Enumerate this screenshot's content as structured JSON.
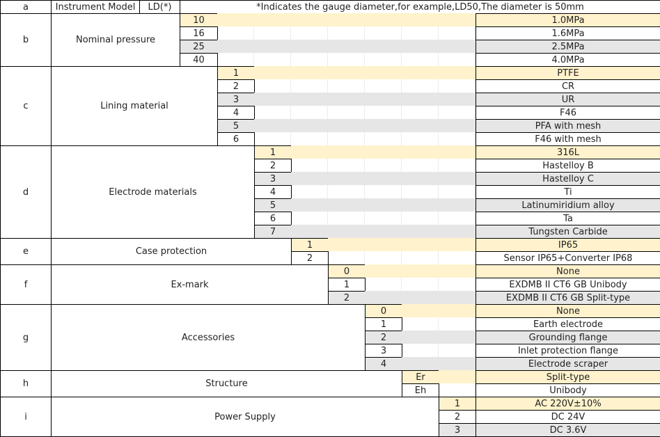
{
  "header": {
    "code": "a",
    "model_label": "Instrument Model",
    "model_value": "LD(*)",
    "note": "*Indicates the gauge diameter,for example,LD50,The diameter is 50mm"
  },
  "groups": [
    {
      "code": "b",
      "label": "Nominal pressure",
      "rows": [
        {
          "code": "10",
          "desc": "1.0MPa"
        },
        {
          "code": "16",
          "desc": "1.6MPa"
        },
        {
          "code": "25",
          "desc": "2.5MPa"
        },
        {
          "code": "40",
          "desc": "4.0MPa"
        }
      ]
    },
    {
      "code": "c",
      "label": "Lining material",
      "rows": [
        {
          "code": "1",
          "desc": "PTFE"
        },
        {
          "code": "2",
          "desc": "CR"
        },
        {
          "code": "3",
          "desc": "UR"
        },
        {
          "code": "4",
          "desc": "F46"
        },
        {
          "code": "5",
          "desc": "PFA with mesh"
        },
        {
          "code": "6",
          "desc": "F46 with mesh"
        }
      ]
    },
    {
      "code": "d",
      "label": "Electrode materials",
      "rows": [
        {
          "code": "1",
          "desc": "316L"
        },
        {
          "code": "2",
          "desc": "Hastelloy B"
        },
        {
          "code": "3",
          "desc": "Hastelloy C"
        },
        {
          "code": "4",
          "desc": "Ti"
        },
        {
          "code": "5",
          "desc": "Latinumiridium alloy"
        },
        {
          "code": "6",
          "desc": "Ta"
        },
        {
          "code": "7",
          "desc": "Tungsten Carbide"
        }
      ]
    },
    {
      "code": "e",
      "label": "Case protection",
      "rows": [
        {
          "code": "1",
          "desc": "IP65"
        },
        {
          "code": "2",
          "desc": "Sensor IP65+Converter IP68"
        }
      ]
    },
    {
      "code": "f",
      "label": "Ex-mark",
      "rows": [
        {
          "code": "0",
          "desc": "None"
        },
        {
          "code": "1",
          "desc": "EXDMB II CT6 GB  Unibody"
        },
        {
          "code": "2",
          "desc": "EXDMB II CT6 GB  Split-type"
        }
      ]
    },
    {
      "code": "g",
      "label": "Accessories",
      "rows": [
        {
          "code": "0",
          "desc": "None"
        },
        {
          "code": "1",
          "desc": "Earth electrode"
        },
        {
          "code": "2",
          "desc": "Grounding flange"
        },
        {
          "code": "3",
          "desc": "Inlet protection flange"
        },
        {
          "code": "4",
          "desc": "Electrode scraper"
        }
      ]
    },
    {
      "code": "h",
      "label": "Structure",
      "rows": [
        {
          "code": "Er",
          "desc": "Split-type"
        },
        {
          "code": "Eh",
          "desc": "Unibody"
        }
      ]
    },
    {
      "code": "i",
      "label": "Power Supply",
      "rows": [
        {
          "code": "1",
          "desc": "AC 220V±10%"
        },
        {
          "code": "2",
          "desc": "DC 24V"
        },
        {
          "code": "3",
          "desc": "DC 3.6V"
        }
      ]
    }
  ]
}
